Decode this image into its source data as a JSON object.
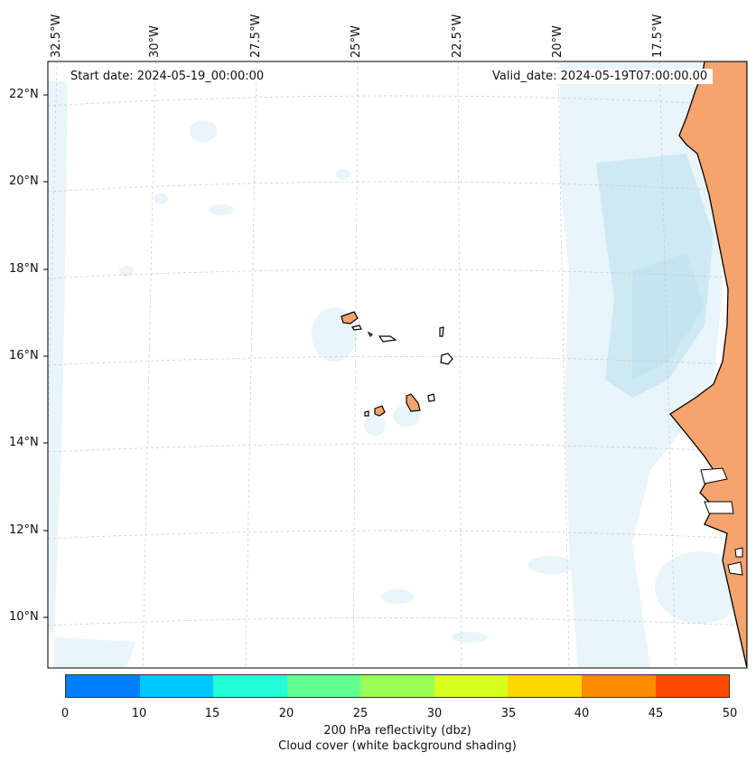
{
  "header": {
    "start_date": "Start date: 2024-05-19_00:00:00",
    "valid_date": "Valid_date: 2024-05-19T07:00:00.00"
  },
  "axes": {
    "longitude_labels": [
      "32.5°W",
      "30°W",
      "27.5°W",
      "25°W",
      "22.5°W",
      "20°W",
      "17.5°W"
    ],
    "latitude_labels": [
      "22°N",
      "20°N",
      "18°N",
      "16°N",
      "14°N",
      "12°N",
      "10°N"
    ]
  },
  "colorbar": {
    "ticks": [
      "0",
      "10",
      "15",
      "20",
      "25",
      "30",
      "35",
      "40",
      "45",
      "50"
    ],
    "colors": [
      "#0080ff",
      "#00c8ff",
      "#20ffd8",
      "#60ff90",
      "#98ff58",
      "#d8ff20",
      "#ffd800",
      "#ff8c00",
      "#ff4a00"
    ],
    "label_line1": "200 hPa reflectivity (dbz)",
    "label_line2": "Cloud cover (white background shading)"
  },
  "styling": {
    "land_color": "#f5a46e",
    "cloud_color": "#b8dff0",
    "coast_color": "#000000",
    "grid_color": "#c8c8c8"
  }
}
